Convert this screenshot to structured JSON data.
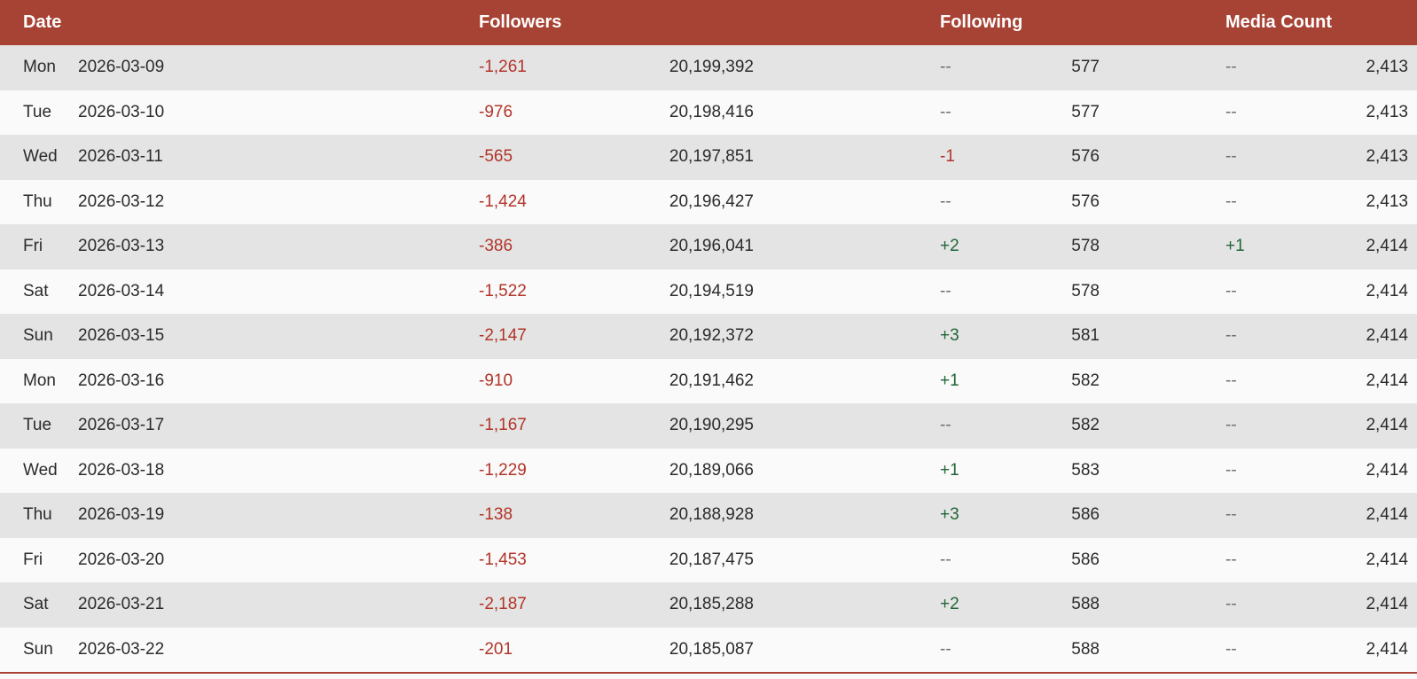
{
  "colors": {
    "header_bg": "#A74334",
    "row_bg": "#FAFAFA",
    "row_alt_bg": "#E4E4E4",
    "negative_text": "#B23428",
    "positive_text": "#206637",
    "neutral_text": "#6E6E6E",
    "body_text": "#2B2B2B",
    "table_bottom_border": "#A74334",
    "header_text": "#FFFFFF"
  },
  "table": {
    "headers": {
      "date": "Date",
      "followers": "Followers",
      "following": "Following",
      "media_count": "Media Count"
    },
    "rows": [
      {
        "day": "Mon",
        "date": "2026-03-09",
        "followers_change": "-1,261",
        "followers_total": "20,199,392",
        "following_change": "--",
        "following_total": "577",
        "media_change": "--",
        "media_total": "2,413"
      },
      {
        "day": "Tue",
        "date": "2026-03-10",
        "followers_change": "-976",
        "followers_total": "20,198,416",
        "following_change": "--",
        "following_total": "577",
        "media_change": "--",
        "media_total": "2,413"
      },
      {
        "day": "Wed",
        "date": "2026-03-11",
        "followers_change": "-565",
        "followers_total": "20,197,851",
        "following_change": "-1",
        "following_total": "576",
        "media_change": "--",
        "media_total": "2,413"
      },
      {
        "day": "Thu",
        "date": "2026-03-12",
        "followers_change": "-1,424",
        "followers_total": "20,196,427",
        "following_change": "--",
        "following_total": "576",
        "media_change": "--",
        "media_total": "2,413"
      },
      {
        "day": "Fri",
        "date": "2026-03-13",
        "followers_change": "-386",
        "followers_total": "20,196,041",
        "following_change": "+2",
        "following_total": "578",
        "media_change": "+1",
        "media_total": "2,414"
      },
      {
        "day": "Sat",
        "date": "2026-03-14",
        "followers_change": "-1,522",
        "followers_total": "20,194,519",
        "following_change": "--",
        "following_total": "578",
        "media_change": "--",
        "media_total": "2,414"
      },
      {
        "day": "Sun",
        "date": "2026-03-15",
        "followers_change": "-2,147",
        "followers_total": "20,192,372",
        "following_change": "+3",
        "following_total": "581",
        "media_change": "--",
        "media_total": "2,414"
      },
      {
        "day": "Mon",
        "date": "2026-03-16",
        "followers_change": "-910",
        "followers_total": "20,191,462",
        "following_change": "+1",
        "following_total": "582",
        "media_change": "--",
        "media_total": "2,414"
      },
      {
        "day": "Tue",
        "date": "2026-03-17",
        "followers_change": "-1,167",
        "followers_total": "20,190,295",
        "following_change": "--",
        "following_total": "582",
        "media_change": "--",
        "media_total": "2,414"
      },
      {
        "day": "Wed",
        "date": "2026-03-18",
        "followers_change": "-1,229",
        "followers_total": "20,189,066",
        "following_change": "+1",
        "following_total": "583",
        "media_change": "--",
        "media_total": "2,414"
      },
      {
        "day": "Thu",
        "date": "2026-03-19",
        "followers_change": "-138",
        "followers_total": "20,188,928",
        "following_change": "+3",
        "following_total": "586",
        "media_change": "--",
        "media_total": "2,414"
      },
      {
        "day": "Fri",
        "date": "2026-03-20",
        "followers_change": "-1,453",
        "followers_total": "20,187,475",
        "following_change": "--",
        "following_total": "586",
        "media_change": "--",
        "media_total": "2,414"
      },
      {
        "day": "Sat",
        "date": "2026-03-21",
        "followers_change": "-2,187",
        "followers_total": "20,185,288",
        "following_change": "+2",
        "following_total": "588",
        "media_change": "--",
        "media_total": "2,414"
      },
      {
        "day": "Sun",
        "date": "2026-03-22",
        "followers_change": "-201",
        "followers_total": "20,185,087",
        "following_change": "--",
        "following_total": "588",
        "media_change": "--",
        "media_total": "2,414"
      }
    ]
  }
}
